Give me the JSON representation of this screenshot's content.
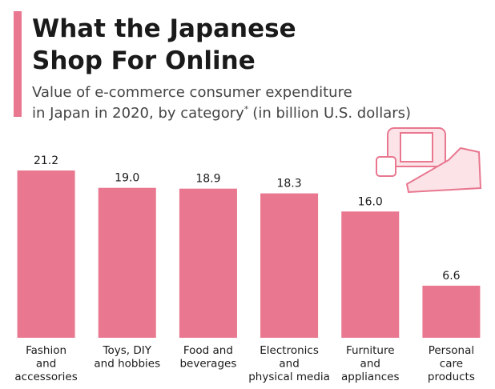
{
  "chart_data": {
    "type": "bar",
    "title": [
      "What the Japanese",
      "Shop For Online"
    ],
    "subtitle": {
      "line1": "Value of e-commerce consumer expenditure",
      "line2_start": "in Japan in 2020, by category",
      "footnote_mark": "*",
      "line2_end": "(in billion U.S. dollars)"
    },
    "categories": [
      [
        "Fashion",
        "and",
        "accessories"
      ],
      [
        "Toys, DIY",
        "and hobbies"
      ],
      [
        "Food and",
        "beverages"
      ],
      [
        "Electronics",
        "and",
        "physical media"
      ],
      [
        "Furniture",
        "and",
        "appliances"
      ],
      [
        "Personal",
        "care",
        "products"
      ]
    ],
    "values": [
      21.2,
      19.0,
      18.9,
      18.3,
      16.0,
      6.6
    ],
    "value_labels": [
      "21.2",
      "19.0",
      "18.9",
      "18.3",
      "16.0",
      "6.6"
    ],
    "color": "#e8778f"
  }
}
